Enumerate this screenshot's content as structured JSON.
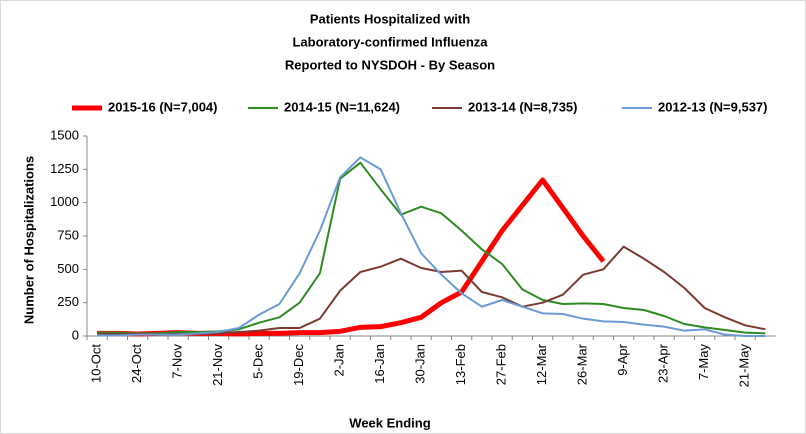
{
  "chart_data": {
    "type": "line",
    "title": [
      "Patients Hospitalized with",
      "Laboratory-confirmed Influenza",
      "Reported to NYSDOH - By Season"
    ],
    "x_label": "Week Ending",
    "y_label": "Number of Hospitalizations",
    "categories": [
      "10-Oct",
      null,
      "24-Oct",
      null,
      "7-Nov",
      null,
      "21-Nov",
      null,
      "5-Dec",
      null,
      "19-Dec",
      null,
      "2-Jan",
      null,
      "16-Jan",
      null,
      "30-Jan",
      null,
      "13-Feb",
      null,
      "27-Feb",
      null,
      "12-Mar",
      null,
      "26-Mar",
      null,
      "9-Apr",
      null,
      "23-Apr",
      null,
      "7-May",
      null,
      "21-May",
      null
    ],
    "ylim": [
      0,
      1500
    ],
    "yticks": [
      0,
      250,
      500,
      750,
      1000,
      1250,
      1500
    ],
    "legend": "top",
    "series": [
      {
        "name": "2015-16 (N=7,004)",
        "color": "#ff0000",
        "width": 5,
        "values": [
          20,
          20,
          15,
          20,
          25,
          20,
          20,
          15,
          20,
          20,
          25,
          25,
          35,
          65,
          70,
          100,
          140,
          250,
          330,
          560,
          790,
          980,
          1170,
          960,
          750,
          560,
          null,
          null,
          null,
          null,
          null,
          null,
          null,
          null
        ]
      },
      {
        "name": "2014-15 (N=11,624)",
        "color": "#2e8b22",
        "width": 2,
        "values": [
          25,
          25,
          20,
          20,
          30,
          30,
          35,
          50,
          100,
          140,
          250,
          470,
          1180,
          1300,
          1100,
          910,
          970,
          920,
          790,
          650,
          540,
          350,
          270,
          240,
          245,
          240,
          210,
          195,
          150,
          90,
          65,
          45,
          25,
          20
        ]
      },
      {
        "name": "2013-14 (N=8,735)",
        "color": "#7b3a32",
        "width": 2,
        "values": [
          15,
          15,
          15,
          10,
          15,
          15,
          20,
          30,
          40,
          60,
          60,
          130,
          340,
          480,
          520,
          580,
          510,
          480,
          490,
          330,
          290,
          220,
          250,
          310,
          460,
          500,
          670,
          580,
          480,
          360,
          210,
          140,
          80,
          50
        ]
      },
      {
        "name": "2012-13 (N=9,537)",
        "color": "#6a9ad4",
        "width": 2,
        "values": [
          5,
          5,
          10,
          10,
          10,
          20,
          30,
          60,
          160,
          240,
          470,
          790,
          1190,
          1340,
          1250,
          920,
          620,
          460,
          320,
          220,
          270,
          220,
          170,
          165,
          130,
          110,
          105,
          85,
          70,
          40,
          50,
          10,
          0,
          0
        ]
      }
    ]
  }
}
